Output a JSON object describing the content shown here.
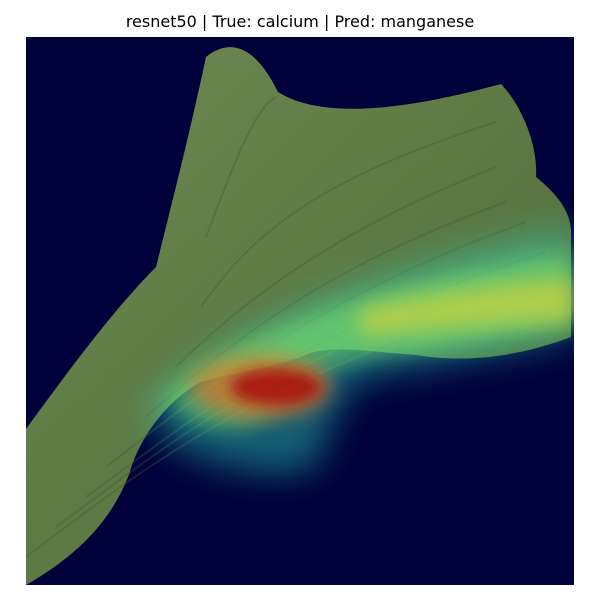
{
  "figure": {
    "title": "resnet50 | True: calcium | Pred: manganese"
  },
  "image": {
    "content": "gradcam-heatmap-overlay-on-leaf",
    "colors": {
      "background": "#00003a",
      "leaf_green": "#5d7a44",
      "leaf_shadow": "#3f5a33",
      "heat_cyan": "#2fe0c4",
      "heat_green": "#79e66a",
      "heat_yellow": "#d6d83d",
      "heat_red": "#b3190f"
    }
  }
}
